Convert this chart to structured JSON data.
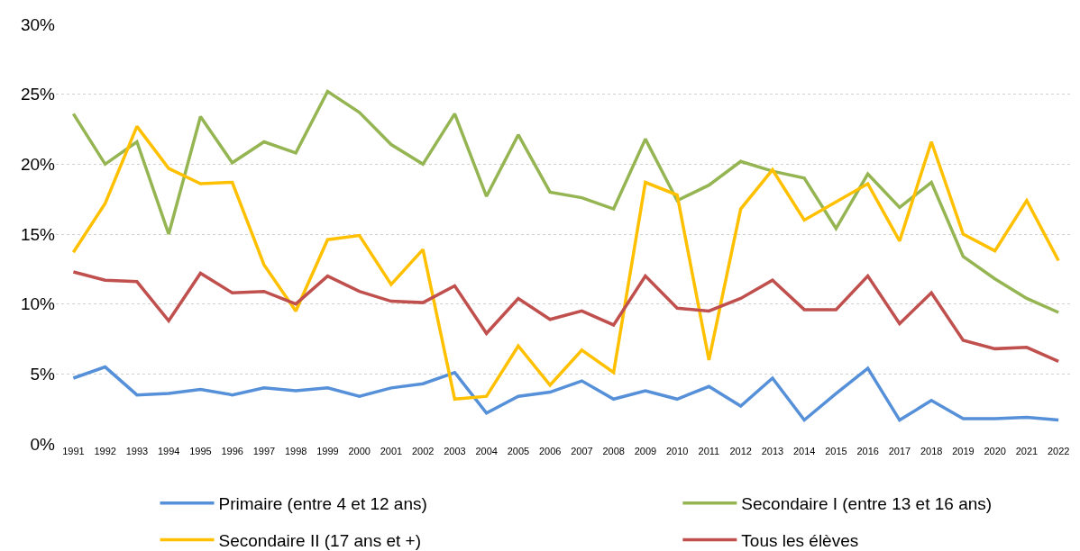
{
  "chart_data": {
    "type": "line",
    "categories": [
      "1991",
      "1992",
      "1993",
      "1994",
      "1995",
      "1996",
      "1997",
      "1998",
      "1999",
      "2000",
      "2001",
      "2002",
      "2003",
      "2004",
      "2005",
      "2006",
      "2007",
      "2008",
      "2009",
      "2010",
      "2011",
      "2012",
      "2013",
      "2014",
      "2015",
      "2016",
      "2017",
      "2018",
      "2019",
      "2020",
      "2021",
      "2022"
    ],
    "series": [
      {
        "name": "Primaire (entre 4 et 12 ans)",
        "color": "#5590d9",
        "values": [
          4.7,
          5.5,
          3.5,
          3.6,
          3.9,
          3.5,
          4.0,
          3.8,
          4.0,
          3.4,
          4.0,
          4.3,
          5.1,
          2.2,
          3.4,
          3.7,
          4.5,
          3.2,
          3.8,
          3.2,
          4.1,
          2.7,
          4.7,
          1.7,
          3.6,
          5.4,
          1.7,
          3.1,
          1.8,
          1.8,
          1.9,
          1.7
        ]
      },
      {
        "name": "Secondaire I (entre 13 et 16 ans)",
        "color": "#95b553",
        "values": [
          23.6,
          20.0,
          21.6,
          15.0,
          23.4,
          20.1,
          21.6,
          20.8,
          25.2,
          23.7,
          21.4,
          20.0,
          23.6,
          17.7,
          22.1,
          18.0,
          17.6,
          16.8,
          21.8,
          17.4,
          18.5,
          20.2,
          19.5,
          19.0,
          15.4,
          19.3,
          16.9,
          18.7,
          13.4,
          11.8,
          10.4,
          9.4
        ]
      },
      {
        "name": "Secondaire II (17 ans et +)",
        "color": "#ffc000",
        "values": [
          13.7,
          17.2,
          22.7,
          19.7,
          18.6,
          18.7,
          12.8,
          9.5,
          14.6,
          14.9,
          11.4,
          13.9,
          3.2,
          3.4,
          7.0,
          4.2,
          6.7,
          5.1,
          18.7,
          17.8,
          6.0,
          16.8,
          19.6,
          16.0,
          17.3,
          18.6,
          14.5,
          21.6,
          15.0,
          13.8,
          17.4,
          13.1
        ]
      },
      {
        "name": "Tous les élèves",
        "color": "#c0504d",
        "values": [
          12.3,
          11.7,
          11.6,
          8.8,
          12.2,
          10.8,
          10.9,
          10.0,
          12.0,
          10.9,
          10.2,
          10.1,
          11.3,
          7.9,
          10.4,
          8.9,
          9.5,
          8.5,
          12.0,
          9.7,
          9.5,
          10.4,
          11.7,
          9.6,
          9.6,
          12.0,
          8.6,
          10.8,
          7.4,
          6.8,
          6.9,
          5.9
        ]
      }
    ],
    "ylim": [
      0,
      30
    ],
    "yticks": [
      {
        "value": 0,
        "label": "0%"
      },
      {
        "value": 5,
        "label": "5%"
      },
      {
        "value": 10,
        "label": "10%"
      },
      {
        "value": 15,
        "label": "15%"
      },
      {
        "value": 20,
        "label": "20%"
      },
      {
        "value": 25,
        "label": "25%"
      },
      {
        "value": 30,
        "label": "30%"
      }
    ],
    "grid": "y",
    "legend": "bottom"
  }
}
